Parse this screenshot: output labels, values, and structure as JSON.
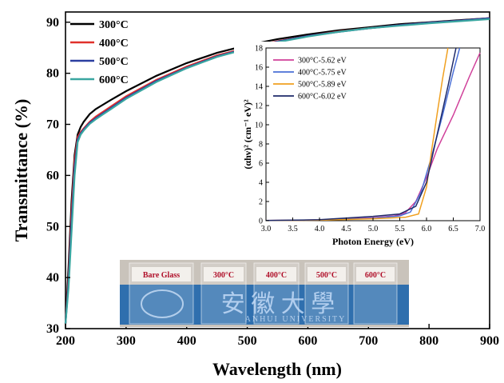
{
  "chart_data": [
    {
      "type": "line",
      "title": "",
      "xlabel": "Wavelength (nm)",
      "ylabel": "Transmittance (%)",
      "xlim": [
        200,
        900
      ],
      "ylim": [
        30,
        92
      ],
      "x_ticks": [
        "200",
        "300",
        "400",
        "500",
        "600",
        "700",
        "800",
        "900"
      ],
      "y_ticks": [
        "30",
        "40",
        "50",
        "60",
        "70",
        "80",
        "90"
      ],
      "grid": false,
      "legend_position": "top-left",
      "x": [
        200,
        205,
        210,
        215,
        220,
        225,
        230,
        240,
        250,
        275,
        300,
        350,
        400,
        450,
        500,
        550,
        600,
        650,
        700,
        750,
        800,
        850,
        900
      ],
      "series": [
        {
          "name": "300°C",
          "color": "#000000",
          "values": [
            31,
            42,
            55,
            64,
            68,
            69.5,
            70.5,
            72,
            73,
            74.8,
            76.5,
            79.5,
            82,
            84,
            85.5,
            86.7,
            87.6,
            88.4,
            89,
            89.6,
            90,
            90.4,
            90.8
          ]
        },
        {
          "name": "400°C",
          "color": "#e0312b",
          "values": [
            31,
            40,
            53,
            63,
            67.5,
            68.5,
            69.2,
            70.5,
            71.5,
            73.5,
            75.5,
            78.7,
            81.3,
            83.5,
            85,
            86.3,
            87.3,
            88.2,
            88.8,
            89.4,
            89.9,
            90.3,
            90.8
          ]
        },
        {
          "name": "500°C",
          "color": "#2b3fa0",
          "values": [
            31,
            39,
            51,
            61.5,
            67,
            68.2,
            69,
            70.3,
            71.2,
            73.2,
            75.2,
            78.5,
            81.1,
            83.3,
            84.9,
            86.2,
            87.3,
            88.1,
            88.8,
            89.4,
            89.9,
            90.3,
            90.8
          ]
        },
        {
          "name": "600°C",
          "color": "#3aa6a0",
          "values": [
            31,
            38,
            49,
            60,
            66.5,
            68,
            68.8,
            70.1,
            71,
            73,
            75,
            78.3,
            81,
            83.2,
            84.8,
            86.1,
            87.2,
            88.1,
            88.8,
            89.3,
            89.8,
            90.2,
            90.6
          ]
        }
      ]
    },
    {
      "type": "line",
      "title": "",
      "xlabel": "Photon Energy (eV)",
      "ylabel": "(αhν)² (cm⁻¹ eV)²",
      "xlim": [
        3.0,
        7.0
      ],
      "ylim": [
        0,
        18
      ],
      "x_ticks": [
        "3.0",
        "3.5",
        "4.0",
        "4.5",
        "5.0",
        "5.5",
        "6.0",
        "6.5",
        "7.0"
      ],
      "y_ticks": [
        "0",
        "2",
        "4",
        "6",
        "8",
        "10",
        "12",
        "14",
        "16",
        "18"
      ],
      "legend_position": "top-left",
      "series": [
        {
          "name": "300°C-5.62 eV",
          "color": "#d0409a",
          "x": [
            3.0,
            4.0,
            5.0,
            5.4,
            5.6,
            5.8,
            6.0,
            6.2,
            6.5,
            6.8,
            7.0
          ],
          "values": [
            0.02,
            0.08,
            0.3,
            0.5,
            0.8,
            2.0,
            4.5,
            7.5,
            11,
            15,
            17.5
          ]
        },
        {
          "name": "400°C-5.75 eV",
          "color": "#4a6fd6",
          "x": [
            3.0,
            4.0,
            5.0,
            5.5,
            5.7,
            5.9,
            6.1,
            6.3,
            6.5,
            6.62
          ],
          "values": [
            0.02,
            0.06,
            0.25,
            0.5,
            0.9,
            3.0,
            6.8,
            11,
            15.5,
            18
          ]
        },
        {
          "name": "500°C-5.89 eV",
          "color": "#f0a020",
          "x": [
            3.0,
            4.0,
            5.0,
            5.6,
            5.85,
            6.0,
            6.1,
            6.2,
            6.3,
            6.4
          ],
          "values": [
            0.02,
            0.05,
            0.2,
            0.35,
            0.7,
            3.5,
            7.5,
            11.2,
            14.8,
            18
          ]
        },
        {
          "name": "600°C-6.02 eV",
          "color": "#1e2a6a",
          "x": [
            3.0,
            4.0,
            5.0,
            5.5,
            5.8,
            6.0,
            6.2,
            6.4,
            6.55
          ],
          "values": [
            0.02,
            0.1,
            0.45,
            0.7,
            1.5,
            4.0,
            9.0,
            14.0,
            18
          ]
        }
      ]
    }
  ],
  "photo": {
    "labels": [
      "Bare Glass",
      "300°C",
      "400°C",
      "500°C",
      "600°C"
    ],
    "chinese_text": "安 徽 大 學",
    "sub_text": "ANHUI UNIVERSITY"
  }
}
